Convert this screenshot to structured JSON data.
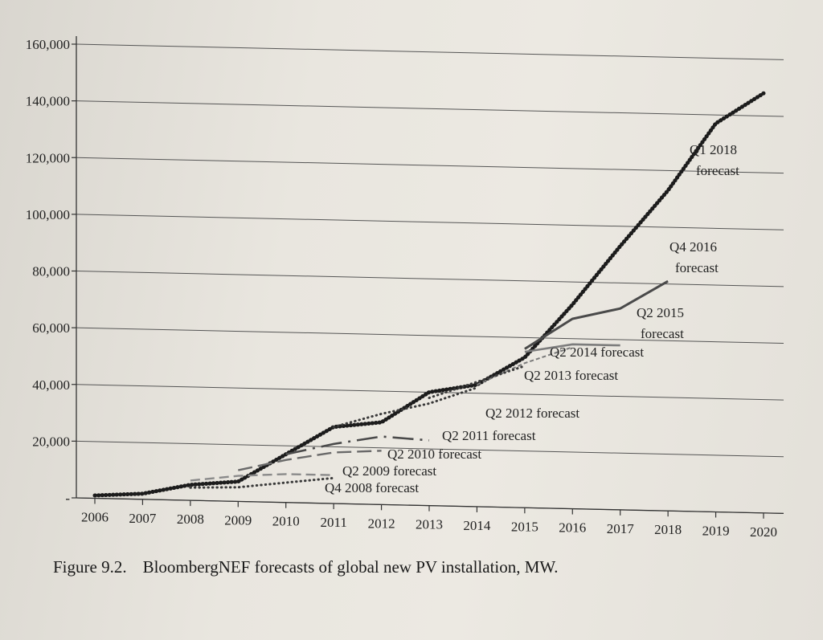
{
  "caption": {
    "number": "Figure 9.2.",
    "text": "BloombergNEF forecasts of global new PV installation, MW."
  },
  "chart_data": {
    "type": "line",
    "title": "BloombergNEF forecasts of global new PV installation, MW.",
    "xlabel": "",
    "ylabel": "",
    "grid": true,
    "xlim": [
      2006,
      2020
    ],
    "ylim": [
      0,
      160000
    ],
    "x_ticks": [
      "2006",
      "2007",
      "2008",
      "2009",
      "2010",
      "2011",
      "2012",
      "2013",
      "2014",
      "2015",
      "2016",
      "2017",
      "2018",
      "2019",
      "2020"
    ],
    "y_ticks": [
      "160,000",
      "140,000",
      "120,000",
      "100,000",
      "80,000",
      "60,000",
      "40,000",
      "20,000",
      "-"
    ],
    "y_tick_values": [
      160000,
      140000,
      120000,
      100000,
      80000,
      60000,
      40000,
      20000,
      0
    ],
    "series": [
      {
        "name": "Q1 2018 forecast",
        "label": [
          "Q1 2018",
          "forecast"
        ],
        "style": "dots-heavy",
        "x": [
          2006,
          2007,
          2008,
          2009,
          2010,
          2011,
          2012,
          2013,
          2014,
          2015,
          2016,
          2017,
          2018,
          2019,
          2020
        ],
        "y": [
          1000,
          2000,
          5500,
          7000,
          17000,
          27000,
          29000,
          40000,
          43000,
          53000,
          72000,
          93000,
          113000,
          137000,
          148000
        ]
      },
      {
        "name": "Q4 2016 forecast",
        "label": [
          "Q4 2016",
          "forecast"
        ],
        "style": "solid",
        "x": [
          2015,
          2016,
          2017,
          2018
        ],
        "y": [
          56000,
          67000,
          71000,
          81000
        ]
      },
      {
        "name": "Q2 2015 forecast",
        "label": [
          "Q2 2015",
          "forecast"
        ],
        "style": "solid-gray",
        "x": [
          2015,
          2016,
          2017
        ],
        "y": [
          55000,
          58000,
          58000
        ]
      },
      {
        "name": "Q2 2014 forecast",
        "label": [
          "Q2 2014 forecast"
        ],
        "style": "dash-small",
        "x": [
          2014,
          2015,
          2016
        ],
        "y": [
          43000,
          51000,
          57000
        ]
      },
      {
        "name": "Q2 2013 forecast",
        "label": [
          "Q2 2013 forecast"
        ],
        "style": "dots-small",
        "x": [
          2013,
          2014,
          2015
        ],
        "y": [
          38000,
          44000,
          50000
        ]
      },
      {
        "name": "Q2 2012 forecast",
        "label": [
          "Q2 2012 forecast"
        ],
        "style": "dots-small",
        "x": [
          2011,
          2012,
          2013,
          2014
        ],
        "y": [
          27000,
          32000,
          36000,
          42000
        ]
      },
      {
        "name": "Q2 2011 forecast",
        "label": [
          "Q2 2011 forecast"
        ],
        "style": "dash-long",
        "x": [
          2010,
          2011,
          2012,
          2013
        ],
        "y": [
          17000,
          21000,
          24000,
          23000
        ]
      },
      {
        "name": "Q2 2010 forecast",
        "label": [
          "Q2 2010 forecast"
        ],
        "style": "dash-mixed",
        "x": [
          2009,
          2010,
          2011,
          2012
        ],
        "y": [
          11000,
          15000,
          18000,
          19000
        ]
      },
      {
        "name": "Q2 2009 forecast",
        "label": [
          "Q2 2009 forecast"
        ],
        "style": "dash-gray",
        "x": [
          2008,
          2009,
          2010,
          2011
        ],
        "y": [
          7000,
          9000,
          10000,
          10000
        ]
      },
      {
        "name": "Q4 2008 forecast",
        "label": [
          "Q4 2008 forecast"
        ],
        "style": "dots-small",
        "x": [
          2008,
          2009,
          2010,
          2011
        ],
        "y": [
          4500,
          5000,
          7000,
          9000
        ]
      }
    ]
  }
}
